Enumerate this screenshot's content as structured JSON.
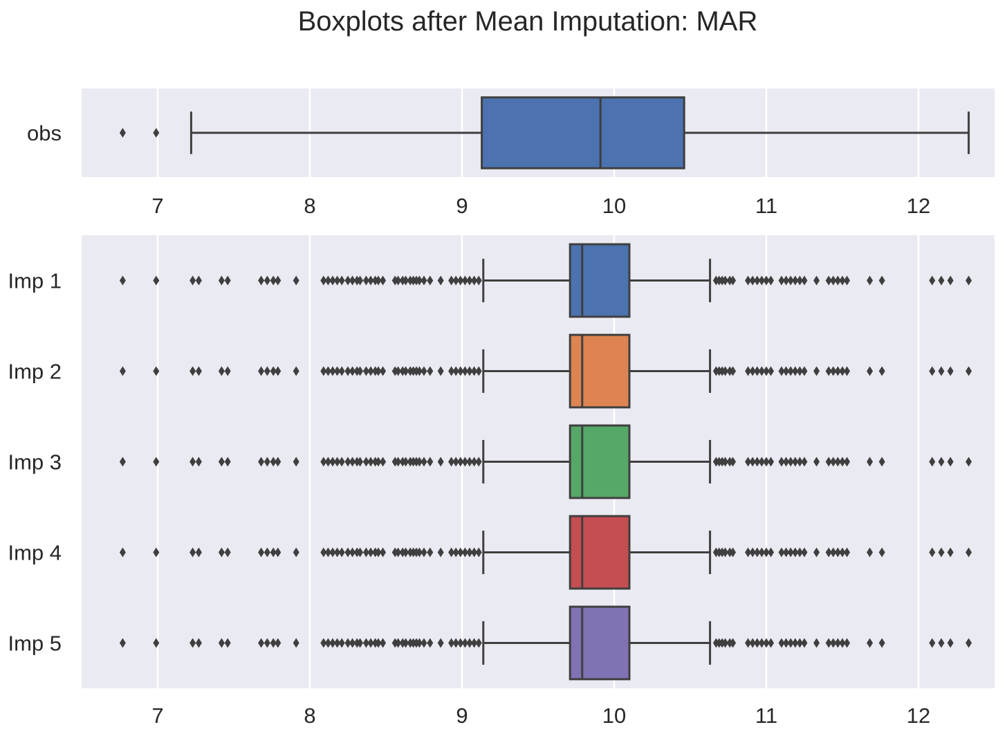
{
  "chart_data": [
    {
      "type": "box",
      "orientation": "horizontal",
      "title": "Boxplots after Mean Imputation: MAR",
      "xlim": [
        6.5,
        12.5
      ],
      "x_ticks": [
        7,
        8,
        9,
        10,
        11,
        12
      ],
      "x_tick_labels": [
        "7",
        "8",
        "9",
        "10",
        "11",
        "12"
      ],
      "grid": true,
      "series": [
        {
          "name": "obs",
          "color": "#4c72b0",
          "whisker_low": 7.22,
          "q1": 9.13,
          "median": 9.91,
          "q3": 10.46,
          "whisker_high": 12.33,
          "outliers": [
            6.77,
            6.99
          ]
        }
      ]
    },
    {
      "type": "box",
      "orientation": "horizontal",
      "xlim": [
        6.5,
        12.5
      ],
      "x_ticks": [
        7,
        8,
        9,
        10,
        11,
        12
      ],
      "x_tick_labels": [
        "7",
        "8",
        "9",
        "10",
        "11",
        "12"
      ],
      "grid": true,
      "series": [
        {
          "name": "Imp 1",
          "color": "#4c72b0",
          "whisker_low": 9.14,
          "q1": 9.71,
          "median": 9.79,
          "q3": 10.1,
          "whisker_high": 10.63,
          "outliers": [
            6.77,
            6.99,
            7.23,
            7.27,
            7.42,
            7.46,
            7.68,
            7.72,
            7.76,
            7.79,
            7.91,
            8.09,
            8.12,
            8.15,
            8.18,
            8.21,
            8.25,
            8.28,
            8.31,
            8.33,
            8.37,
            8.4,
            8.43,
            8.45,
            8.48,
            8.56,
            8.58,
            8.61,
            8.63,
            8.66,
            8.68,
            8.7,
            8.72,
            8.75,
            8.79,
            8.86,
            8.93,
            8.96,
            8.99,
            9.02,
            9.05,
            9.08,
            9.11,
            10.67,
            10.69,
            10.71,
            10.73,
            10.76,
            10.78,
            10.88,
            10.91,
            10.94,
            10.97,
            11.0,
            11.03,
            11.1,
            11.13,
            11.16,
            11.19,
            11.22,
            11.25,
            11.33,
            11.41,
            11.44,
            11.47,
            11.5,
            11.53,
            11.68,
            11.76,
            12.09,
            12.15,
            12.21,
            12.33
          ]
        },
        {
          "name": "Imp 2",
          "color": "#dd8452",
          "whisker_low": 9.14,
          "q1": 9.71,
          "median": 9.79,
          "q3": 10.1,
          "whisker_high": 10.63,
          "outliers": [
            6.77,
            6.99,
            7.23,
            7.27,
            7.42,
            7.46,
            7.68,
            7.72,
            7.76,
            7.79,
            7.91,
            8.09,
            8.12,
            8.15,
            8.18,
            8.21,
            8.25,
            8.28,
            8.31,
            8.33,
            8.37,
            8.4,
            8.43,
            8.45,
            8.48,
            8.56,
            8.58,
            8.61,
            8.63,
            8.66,
            8.68,
            8.7,
            8.72,
            8.75,
            8.79,
            8.86,
            8.93,
            8.96,
            8.99,
            9.02,
            9.05,
            9.08,
            9.11,
            10.67,
            10.69,
            10.71,
            10.73,
            10.76,
            10.78,
            10.88,
            10.91,
            10.94,
            10.97,
            11.0,
            11.03,
            11.1,
            11.13,
            11.16,
            11.19,
            11.22,
            11.25,
            11.33,
            11.41,
            11.44,
            11.47,
            11.5,
            11.53,
            11.68,
            11.76,
            12.09,
            12.15,
            12.21,
            12.33
          ]
        },
        {
          "name": "Imp 3",
          "color": "#55a868",
          "whisker_low": 9.14,
          "q1": 9.71,
          "median": 9.79,
          "q3": 10.1,
          "whisker_high": 10.63,
          "outliers": [
            6.77,
            6.99,
            7.23,
            7.27,
            7.42,
            7.46,
            7.68,
            7.72,
            7.76,
            7.79,
            7.91,
            8.09,
            8.12,
            8.15,
            8.18,
            8.21,
            8.25,
            8.28,
            8.31,
            8.33,
            8.37,
            8.4,
            8.43,
            8.45,
            8.48,
            8.56,
            8.58,
            8.61,
            8.63,
            8.66,
            8.68,
            8.7,
            8.72,
            8.75,
            8.79,
            8.86,
            8.93,
            8.96,
            8.99,
            9.02,
            9.05,
            9.08,
            9.11,
            10.67,
            10.69,
            10.71,
            10.73,
            10.76,
            10.78,
            10.88,
            10.91,
            10.94,
            10.97,
            11.0,
            11.03,
            11.1,
            11.13,
            11.16,
            11.19,
            11.22,
            11.25,
            11.33,
            11.41,
            11.44,
            11.47,
            11.5,
            11.53,
            11.68,
            11.76,
            12.09,
            12.15,
            12.21,
            12.33
          ]
        },
        {
          "name": "Imp 4",
          "color": "#c44e52",
          "whisker_low": 9.14,
          "q1": 9.71,
          "median": 9.79,
          "q3": 10.1,
          "whisker_high": 10.63,
          "outliers": [
            6.77,
            6.99,
            7.23,
            7.27,
            7.42,
            7.46,
            7.68,
            7.72,
            7.76,
            7.79,
            7.91,
            8.09,
            8.12,
            8.15,
            8.18,
            8.21,
            8.25,
            8.28,
            8.31,
            8.33,
            8.37,
            8.4,
            8.43,
            8.45,
            8.48,
            8.56,
            8.58,
            8.61,
            8.63,
            8.66,
            8.68,
            8.7,
            8.72,
            8.75,
            8.79,
            8.86,
            8.93,
            8.96,
            8.99,
            9.02,
            9.05,
            9.08,
            9.11,
            10.67,
            10.69,
            10.71,
            10.73,
            10.76,
            10.78,
            10.88,
            10.91,
            10.94,
            10.97,
            11.0,
            11.03,
            11.1,
            11.13,
            11.16,
            11.19,
            11.22,
            11.25,
            11.33,
            11.41,
            11.44,
            11.47,
            11.5,
            11.53,
            11.68,
            11.76,
            12.09,
            12.15,
            12.21,
            12.33
          ]
        },
        {
          "name": "Imp 5",
          "color": "#8172b3",
          "whisker_low": 9.14,
          "q1": 9.71,
          "median": 9.79,
          "q3": 10.1,
          "whisker_high": 10.63,
          "outliers": [
            6.77,
            6.99,
            7.23,
            7.27,
            7.42,
            7.46,
            7.68,
            7.72,
            7.76,
            7.79,
            7.91,
            8.09,
            8.12,
            8.15,
            8.18,
            8.21,
            8.25,
            8.28,
            8.31,
            8.33,
            8.37,
            8.4,
            8.43,
            8.45,
            8.48,
            8.56,
            8.58,
            8.61,
            8.63,
            8.66,
            8.68,
            8.7,
            8.72,
            8.75,
            8.79,
            8.86,
            8.93,
            8.96,
            8.99,
            9.02,
            9.05,
            9.08,
            9.11,
            10.67,
            10.69,
            10.71,
            10.73,
            10.76,
            10.78,
            10.88,
            10.91,
            10.94,
            10.97,
            11.0,
            11.03,
            11.1,
            11.13,
            11.16,
            11.19,
            11.22,
            11.25,
            11.33,
            11.41,
            11.44,
            11.47,
            11.5,
            11.53,
            11.68,
            11.76,
            12.09,
            12.15,
            12.21,
            12.33
          ]
        }
      ]
    }
  ],
  "colors": {
    "panel_background": "#eaeaf2",
    "gridline": "#ffffff",
    "line": "#3f3f3f",
    "text": "#262626"
  }
}
